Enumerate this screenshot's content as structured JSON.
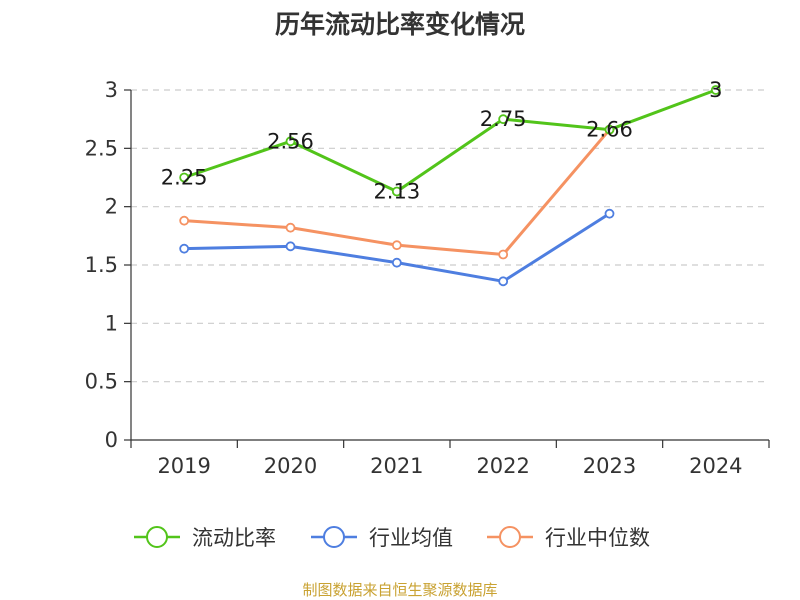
{
  "chart_data": {
    "type": "line",
    "title": "历年流动比率变化情况",
    "categories": [
      "2019",
      "2020",
      "2021",
      "2022",
      "2023",
      "2024"
    ],
    "ylim": [
      0,
      3
    ],
    "yticks": [
      "0",
      "0.5",
      "1",
      "1.5",
      "2",
      "2.5",
      "3"
    ],
    "grid": true,
    "legend_position": "bottom",
    "series": [
      {
        "name": "流动比率",
        "color": "#52c41a",
        "values": [
          2.25,
          2.56,
          2.13,
          2.75,
          2.66,
          3
        ],
        "data_labels": [
          "2.25",
          "2.56",
          "2.13",
          "2.75",
          "2.66",
          "3"
        ]
      },
      {
        "name": "行业均值",
        "color": "#4e7ee0",
        "values": [
          1.64,
          1.66,
          1.52,
          1.36,
          1.94,
          null
        ]
      },
      {
        "name": "行业中位数",
        "color": "#f59262",
        "values": [
          1.88,
          1.82,
          1.67,
          1.59,
          2.66,
          null
        ]
      }
    ]
  },
  "source_text": "制图数据来自恒生聚源数据库",
  "source_color": "#c9a232"
}
